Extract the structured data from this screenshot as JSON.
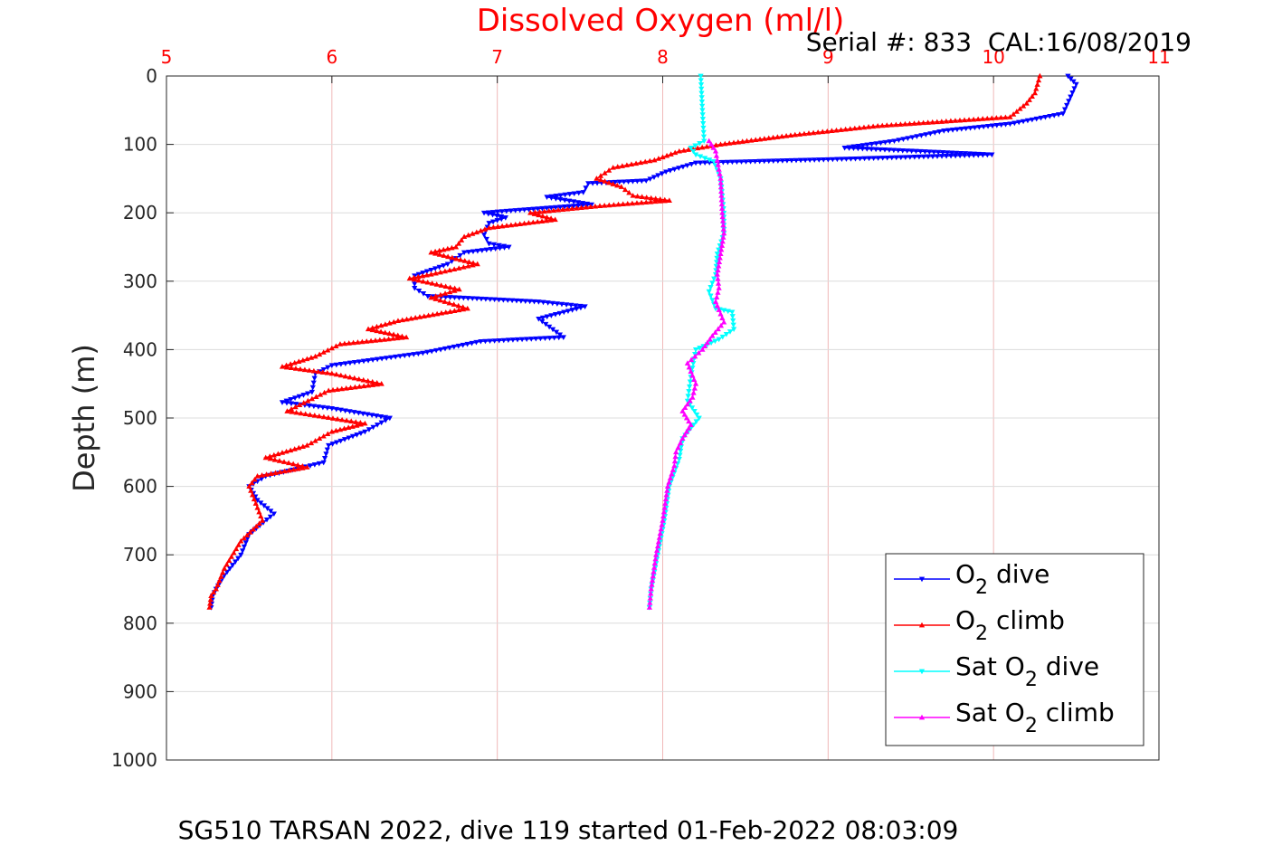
{
  "chart_data": {
    "type": "line",
    "title": "Dissolved Oxygen (ml/l)",
    "subtitle": "Serial #: 833  CAL:16/08/2019",
    "footer": "SG510 TARSAN 2022, dive 119 started 01-Feb-2022 08:03:09",
    "xlabel": "",
    "ylabel": "Depth (m)",
    "x_axis_position": "top",
    "y_reversed": true,
    "xlim": [
      5,
      11
    ],
    "ylim": [
      0,
      1000
    ],
    "x_ticks": [
      "5",
      "6",
      "7",
      "8",
      "9",
      "10",
      "11"
    ],
    "y_ticks": [
      "0",
      "100",
      "200",
      "300",
      "400",
      "500",
      "600",
      "700",
      "800",
      "900",
      "1000"
    ],
    "grid": true,
    "legend_position": "bottom-right",
    "colors": {
      "title": "#ff0000",
      "x_ticks": "#ff0000",
      "grid": "#f0b8b8",
      "axes": "#262626"
    },
    "series": [
      {
        "name": "O2 dive",
        "legend_main": "O",
        "legend_sub": "2",
        "legend_rest": " dive",
        "color": "#0000ff",
        "marker": "triangle-down",
        "points": [
          [
            10.45,
            0
          ],
          [
            10.5,
            12
          ],
          [
            10.42,
            55
          ],
          [
            10.1,
            70
          ],
          [
            9.7,
            80
          ],
          [
            9.4,
            95
          ],
          [
            9.1,
            105
          ],
          [
            9.99,
            115
          ],
          [
            9.0,
            122
          ],
          [
            8.2,
            127
          ],
          [
            8.02,
            140
          ],
          [
            7.9,
            153
          ],
          [
            7.55,
            157
          ],
          [
            7.52,
            170
          ],
          [
            7.3,
            177
          ],
          [
            7.57,
            188
          ],
          [
            6.92,
            200
          ],
          [
            7.05,
            207
          ],
          [
            6.95,
            215
          ],
          [
            6.92,
            232
          ],
          [
            6.95,
            245
          ],
          [
            7.07,
            250
          ],
          [
            6.8,
            258
          ],
          [
            6.7,
            275
          ],
          [
            6.5,
            292
          ],
          [
            6.5,
            310
          ],
          [
            6.58,
            322
          ],
          [
            6.85,
            325
          ],
          [
            7.25,
            330
          ],
          [
            7.53,
            337
          ],
          [
            7.25,
            355
          ],
          [
            7.4,
            382
          ],
          [
            6.9,
            388
          ],
          [
            6.55,
            405
          ],
          [
            6.0,
            423
          ],
          [
            5.9,
            435
          ],
          [
            5.88,
            462
          ],
          [
            5.7,
            477
          ],
          [
            6.0,
            486
          ],
          [
            6.35,
            500
          ],
          [
            6.2,
            520
          ],
          [
            5.98,
            540
          ],
          [
            5.95,
            565
          ],
          [
            5.6,
            585
          ],
          [
            5.5,
            600
          ],
          [
            5.55,
            620
          ],
          [
            5.65,
            640
          ],
          [
            5.5,
            670
          ],
          [
            5.45,
            700
          ],
          [
            5.35,
            730
          ],
          [
            5.3,
            750
          ],
          [
            5.28,
            760
          ],
          [
            5.27,
            777
          ]
        ]
      },
      {
        "name": "O2 climb",
        "legend_main": "O",
        "legend_sub": "2",
        "legend_rest": " climb",
        "color": "#ff0000",
        "marker": "triangle-up",
        "points": [
          [
            10.28,
            0
          ],
          [
            10.25,
            25
          ],
          [
            10.2,
            40
          ],
          [
            10.1,
            60
          ],
          [
            9.3,
            73
          ],
          [
            8.8,
            86
          ],
          [
            8.35,
            100
          ],
          [
            8.1,
            110
          ],
          [
            7.95,
            123
          ],
          [
            7.7,
            134
          ],
          [
            7.6,
            150
          ],
          [
            7.75,
            162
          ],
          [
            7.82,
            175
          ],
          [
            8.04,
            182
          ],
          [
            7.62,
            190
          ],
          [
            7.2,
            200
          ],
          [
            7.35,
            210
          ],
          [
            6.95,
            222
          ],
          [
            6.8,
            235
          ],
          [
            6.75,
            250
          ],
          [
            6.6,
            258
          ],
          [
            6.88,
            275
          ],
          [
            6.6,
            290
          ],
          [
            6.47,
            296
          ],
          [
            6.77,
            312
          ],
          [
            6.6,
            324
          ],
          [
            6.82,
            340
          ],
          [
            6.4,
            358
          ],
          [
            6.22,
            370
          ],
          [
            6.45,
            382
          ],
          [
            6.05,
            392
          ],
          [
            5.9,
            410
          ],
          [
            5.7,
            425
          ],
          [
            6.0,
            435
          ],
          [
            6.3,
            450
          ],
          [
            5.98,
            460
          ],
          [
            5.73,
            490
          ],
          [
            6.2,
            508
          ],
          [
            6.0,
            520
          ],
          [
            5.85,
            540
          ],
          [
            5.6,
            558
          ],
          [
            5.85,
            572
          ],
          [
            5.55,
            585
          ],
          [
            5.5,
            600
          ],
          [
            5.58,
            650
          ],
          [
            5.45,
            680
          ],
          [
            5.35,
            720
          ],
          [
            5.3,
            750
          ],
          [
            5.27,
            760
          ],
          [
            5.26,
            777
          ]
        ]
      },
      {
        "name": "Sat O2 dive",
        "legend_main": "Sat O",
        "legend_sub": "2",
        "legend_rest": " dive",
        "color": "#00ffff",
        "marker": "triangle-down",
        "points": [
          [
            8.23,
            0
          ],
          [
            8.24,
            50
          ],
          [
            8.25,
            95
          ],
          [
            8.17,
            105
          ],
          [
            8.2,
            115
          ],
          [
            8.31,
            125
          ],
          [
            8.35,
            150
          ],
          [
            8.37,
            200
          ],
          [
            8.37,
            230
          ],
          [
            8.33,
            260
          ],
          [
            8.32,
            290
          ],
          [
            8.28,
            315
          ],
          [
            8.32,
            340
          ],
          [
            8.42,
            345
          ],
          [
            8.43,
            370
          ],
          [
            8.34,
            385
          ],
          [
            8.2,
            400
          ],
          [
            8.17,
            440
          ],
          [
            8.15,
            475
          ],
          [
            8.22,
            500
          ],
          [
            8.12,
            530
          ],
          [
            8.1,
            560
          ],
          [
            8.04,
            600
          ],
          [
            8.01,
            650
          ],
          [
            7.97,
            700
          ],
          [
            7.93,
            750
          ],
          [
            7.92,
            777
          ]
        ]
      },
      {
        "name": "Sat O2 climb",
        "legend_main": "Sat O",
        "legend_sub": "2",
        "legend_rest": " climb",
        "color": "#ff00ff",
        "marker": "triangle-up",
        "points": [
          [
            8.28,
            95
          ],
          [
            8.32,
            110
          ],
          [
            8.35,
            150
          ],
          [
            8.36,
            200
          ],
          [
            8.37,
            230
          ],
          [
            8.35,
            260
          ],
          [
            8.33,
            290
          ],
          [
            8.34,
            310
          ],
          [
            8.32,
            330
          ],
          [
            8.37,
            360
          ],
          [
            8.3,
            380
          ],
          [
            8.24,
            400
          ],
          [
            8.15,
            420
          ],
          [
            8.2,
            450
          ],
          [
            8.18,
            470
          ],
          [
            8.12,
            490
          ],
          [
            8.17,
            510
          ],
          [
            8.12,
            530
          ],
          [
            8.08,
            550
          ],
          [
            8.07,
            570
          ],
          [
            8.03,
            600
          ],
          [
            8.0,
            650
          ],
          [
            7.96,
            700
          ],
          [
            7.93,
            750
          ],
          [
            7.92,
            777
          ]
        ]
      }
    ]
  }
}
